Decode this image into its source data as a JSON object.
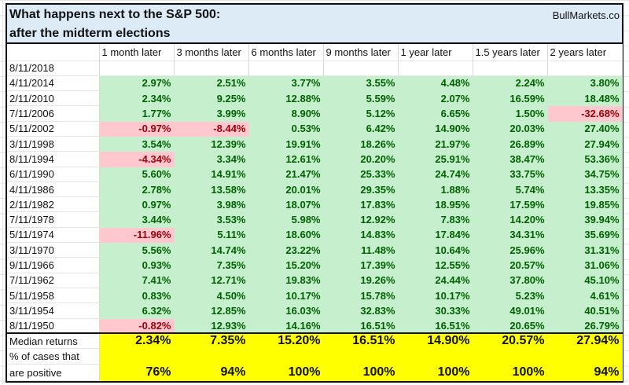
{
  "title_line1": "What happens next to the S&P 500:",
  "title_line2": "after the midterm elections",
  "brand": "BullMarkets.co",
  "columns": [
    "1 month later",
    "3 months later",
    "6 months later",
    "9 months later",
    "1 year later",
    "1.5 years later",
    "2 years later"
  ],
  "current_date": "8/11/2018",
  "rows": [
    {
      "date": "4/11/2014",
      "values": [
        "2.97%",
        "2.51%",
        "3.77%",
        "3.55%",
        "4.48%",
        "2.24%",
        "3.80%"
      ]
    },
    {
      "date": "2/11/2010",
      "values": [
        "2.34%",
        "9.25%",
        "12.88%",
        "5.59%",
        "2.07%",
        "16.59%",
        "18.48%"
      ]
    },
    {
      "date": "7/11/2006",
      "values": [
        "1.77%",
        "3.99%",
        "8.90%",
        "5.12%",
        "6.65%",
        "1.50%",
        "-32.68%"
      ]
    },
    {
      "date": "5/11/2002",
      "values": [
        "-0.97%",
        "-8.44%",
        "0.53%",
        "6.42%",
        "14.90%",
        "20.03%",
        "27.40%"
      ]
    },
    {
      "date": "3/11/1998",
      "values": [
        "3.54%",
        "12.39%",
        "19.91%",
        "18.26%",
        "21.97%",
        "26.89%",
        "27.94%"
      ]
    },
    {
      "date": "8/11/1994",
      "values": [
        "-4.34%",
        "3.34%",
        "12.61%",
        "20.20%",
        "25.91%",
        "38.47%",
        "53.36%"
      ]
    },
    {
      "date": "6/11/1990",
      "values": [
        "5.60%",
        "14.91%",
        "21.47%",
        "25.33%",
        "24.74%",
        "33.75%",
        "34.75%"
      ]
    },
    {
      "date": "4/11/1986",
      "values": [
        "2.78%",
        "13.58%",
        "20.01%",
        "29.35%",
        "1.88%",
        "5.74%",
        "13.35%"
      ]
    },
    {
      "date": "2/11/1982",
      "values": [
        "0.97%",
        "3.98%",
        "18.07%",
        "17.83%",
        "18.95%",
        "17.59%",
        "19.85%"
      ]
    },
    {
      "date": "7/11/1978",
      "values": [
        "3.44%",
        "3.53%",
        "5.98%",
        "12.92%",
        "7.83%",
        "14.20%",
        "39.94%"
      ]
    },
    {
      "date": "5/11/1974",
      "values": [
        "-11.96%",
        "5.11%",
        "18.60%",
        "14.83%",
        "17.84%",
        "34.31%",
        "35.69%"
      ]
    },
    {
      "date": "3/11/1970",
      "values": [
        "5.56%",
        "14.74%",
        "23.22%",
        "11.48%",
        "10.64%",
        "25.96%",
        "31.31%"
      ]
    },
    {
      "date": "9/11/1966",
      "values": [
        "0.93%",
        "7.35%",
        "15.20%",
        "17.39%",
        "12.55%",
        "20.57%",
        "31.06%"
      ]
    },
    {
      "date": "7/11/1962",
      "values": [
        "7.41%",
        "12.71%",
        "19.83%",
        "19.26%",
        "24.44%",
        "37.80%",
        "45.10%"
      ]
    },
    {
      "date": "5/11/1958",
      "values": [
        "0.83%",
        "4.50%",
        "10.17%",
        "15.78%",
        "10.17%",
        "5.23%",
        "4.61%"
      ]
    },
    {
      "date": "3/11/1954",
      "values": [
        "6.32%",
        "12.85%",
        "16.03%",
        "32.83%",
        "30.33%",
        "49.01%",
        "40.51%"
      ]
    },
    {
      "date": "8/11/1950",
      "values": [
        "-0.82%",
        "12.93%",
        "14.16%",
        "16.51%",
        "16.51%",
        "20.65%",
        "26.79%"
      ]
    }
  ],
  "median": {
    "label": "Median returns",
    "values": [
      "2.34%",
      "7.35%",
      "15.20%",
      "16.51%",
      "14.90%",
      "20.57%",
      "27.94%"
    ]
  },
  "positive": {
    "label_line1": "% of cases that",
    "label_line2": "are positive",
    "values": [
      "76%",
      "94%",
      "100%",
      "100%",
      "100%",
      "100%",
      "94%"
    ]
  },
  "colors": {
    "positive_fill": "#c6efce",
    "positive_text": "#006100",
    "negative_fill": "#ffc7ce",
    "negative_text": "#9c0006",
    "summary_fill": "#ffff00",
    "title_fill": "#ddebf7"
  }
}
